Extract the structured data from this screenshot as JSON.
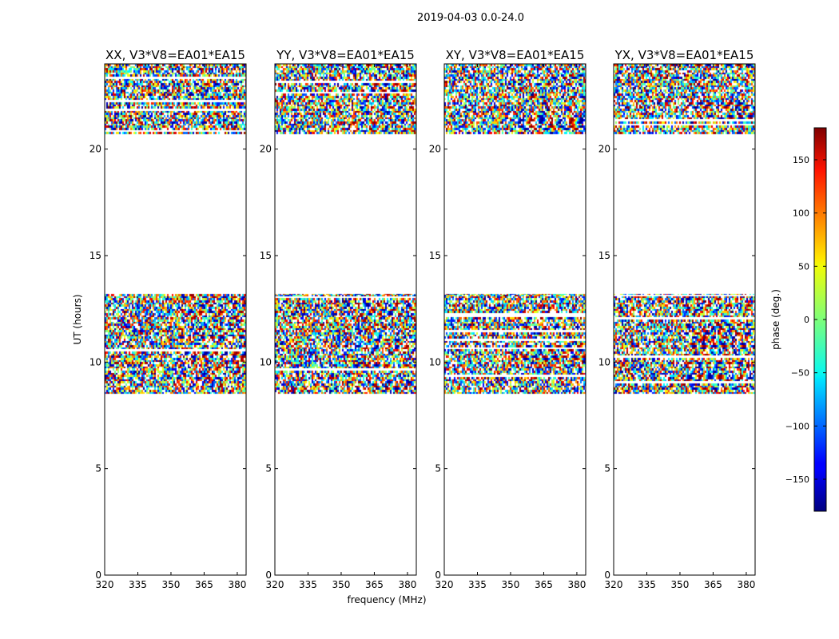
{
  "chart_data": {
    "type": "heatmap",
    "title": "2019-04-03 0.0-24.0",
    "xlabel": "frequency (MHz)",
    "ylabel": "UT (hours)",
    "xlim": [
      320,
      384
    ],
    "ylim": [
      0,
      24
    ],
    "xticks": [
      "320",
      "335",
      "350",
      "365",
      "380"
    ],
    "yticks": [
      "0",
      "5",
      "10",
      "15",
      "20"
    ],
    "panels": [
      {
        "title": "XX, V3*V8=EA01*EA15"
      },
      {
        "title": "YY, V3*V8=EA01*EA15"
      },
      {
        "title": "XY, V3*V8=EA01*EA15"
      },
      {
        "title": "YX, V3*V8=EA01*EA15"
      }
    ],
    "data_time_ranges_hours": [
      [
        8.5,
        13.2
      ],
      [
        20.7,
        24.0
      ]
    ],
    "colorbar": {
      "label": "phase (deg.)",
      "range": [
        -180,
        180
      ],
      "ticks": [
        "150",
        "100",
        "50",
        "0",
        "−50",
        "−100",
        "−150"
      ],
      "colormap": "jet"
    }
  }
}
